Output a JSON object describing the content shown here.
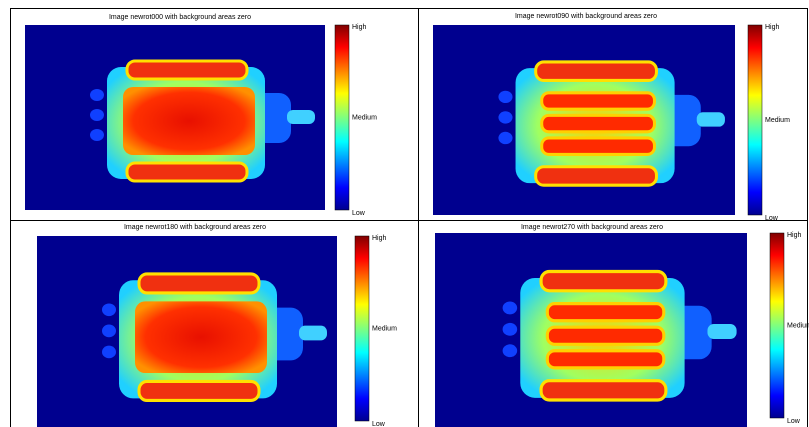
{
  "panels": [
    {
      "title": "Image newrot000 with background areas zero",
      "colorbar": {
        "high": "High",
        "medium": "Medium",
        "low": "Low"
      }
    },
    {
      "title": "Image newrot090 with background areas zero",
      "colorbar": {
        "high": "High",
        "medium": "Medium",
        "low": "Low"
      }
    },
    {
      "title": "Image newrot180 with background areas zero",
      "colorbar": {
        "high": "High",
        "medium": "Medium",
        "low": "Low"
      }
    },
    {
      "title": "Image newrot270 with background areas zero",
      "colorbar": {
        "high": "High",
        "medium": "Medium",
        "low": "Low"
      }
    }
  ]
}
